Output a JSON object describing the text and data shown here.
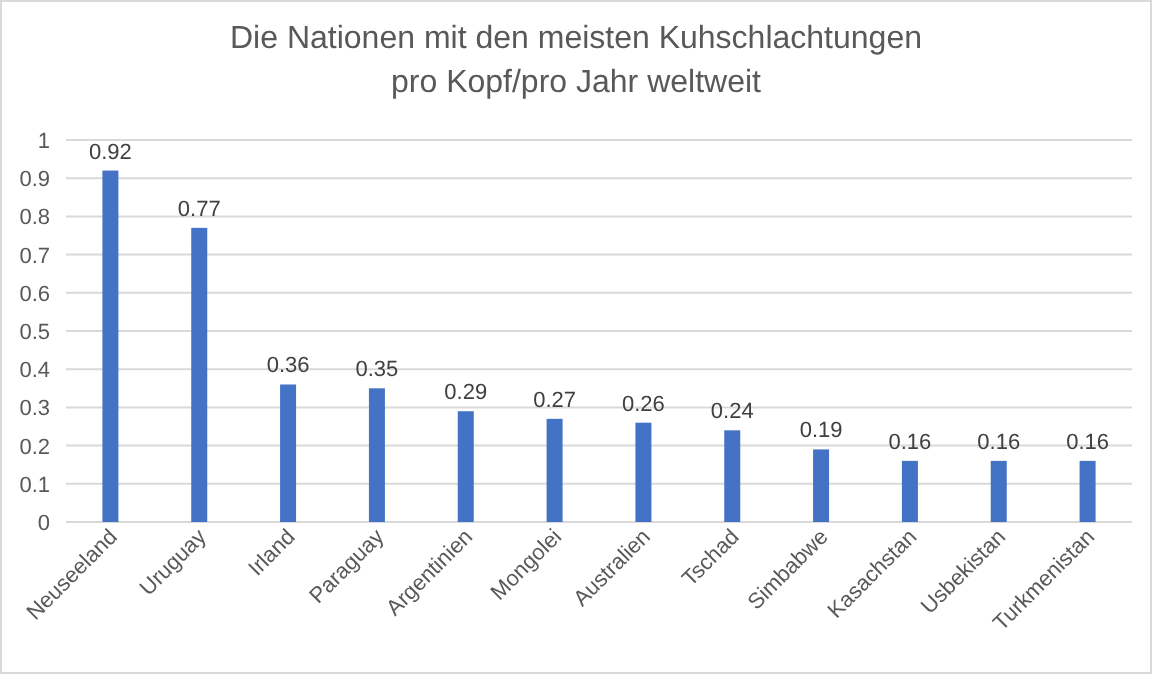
{
  "chart_data": {
    "type": "bar",
    "title": "Die Nationen mit den meisten Kuhschlachtungen pro Kopf/pro Jahr weltweit",
    "categories": [
      "Neuseeland",
      "Uruguay",
      "Irland",
      "Paraguay",
      "Argentinien",
      "Mongolei",
      "Australien",
      "Tschad",
      "Simbabwe",
      "Kasachstan",
      "Usbekistan",
      "Turkmenistan"
    ],
    "values": [
      0.92,
      0.77,
      0.36,
      0.35,
      0.29,
      0.27,
      0.26,
      0.24,
      0.19,
      0.16,
      0.16,
      0.16
    ],
    "color": "#4472c4",
    "ylim": [
      0,
      1
    ],
    "yticks": [
      0,
      0.1,
      0.2,
      0.3,
      0.4,
      0.5,
      0.6,
      0.7,
      0.8,
      0.9,
      1
    ],
    "grid": true,
    "data_labels": true
  }
}
